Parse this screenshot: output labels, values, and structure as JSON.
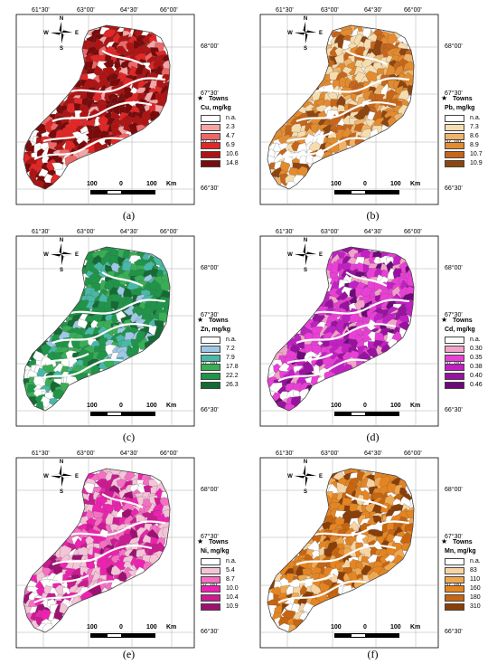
{
  "longitude_labels": [
    "61°30'",
    "63°00'",
    "64°30'",
    "66°00'"
  ],
  "latitude_labels": [
    "68°00'",
    "67°30'",
    "67°00'",
    "66°30'"
  ],
  "compass": {
    "n": "N",
    "s": "S",
    "e": "E",
    "w": "W"
  },
  "towns_label": "Towns",
  "scale_bar": {
    "left": "100",
    "mid": "0",
    "right": "100",
    "unit": "Km"
  },
  "na_color": "#ffffff",
  "panels": [
    {
      "caption": "(a)",
      "title": "Cu, mg/kg",
      "classes": [
        {
          "label": "n.a.",
          "color": "#ffffff"
        },
        {
          "label": "2.3",
          "color": "#f4a6a6"
        },
        {
          "label": "4.7",
          "color": "#ee6767"
        },
        {
          "label": "6.9",
          "color": "#e32626"
        },
        {
          "label": "10.6",
          "color": "#b01313"
        },
        {
          "label": "14.8",
          "color": "#7b0a0a"
        }
      ]
    },
    {
      "caption": "(b)",
      "title": "Pb, mg/kg",
      "classes": [
        {
          "label": "n.a.",
          "color": "#ffffff"
        },
        {
          "label": "7.3",
          "color": "#f6ddb0"
        },
        {
          "label": "8.6",
          "color": "#efb46a"
        },
        {
          "label": "8.9",
          "color": "#e38b2e"
        },
        {
          "label": "10.7",
          "color": "#c7661a"
        },
        {
          "label": "10.9",
          "color": "#8e4510"
        }
      ]
    },
    {
      "caption": "(c)",
      "title": "Zn, mg/kg",
      "classes": [
        {
          "label": "n.a.",
          "color": "#ffffff"
        },
        {
          "label": "7.2",
          "color": "#9ec8e6"
        },
        {
          "label": "7.9",
          "color": "#49b8a6"
        },
        {
          "label": "17.8",
          "color": "#39ae55"
        },
        {
          "label": "22.2",
          "color": "#1e9548"
        },
        {
          "label": "26.3",
          "color": "#146b34"
        }
      ]
    },
    {
      "caption": "(d)",
      "title": "Cd, mg/kg",
      "classes": [
        {
          "label": "n.a.",
          "color": "#ffffff"
        },
        {
          "label": "0.30",
          "color": "#f2a3c9"
        },
        {
          "label": "0.35",
          "color": "#ea3fd7"
        },
        {
          "label": "0.38",
          "color": "#c21fc4"
        },
        {
          "label": "0.40",
          "color": "#98129f"
        },
        {
          "label": "0.46",
          "color": "#6d0a78"
        }
      ]
    },
    {
      "caption": "(e)",
      "title": "Ni, mg/kg",
      "classes": [
        {
          "label": "n.a.",
          "color": "#ffffff"
        },
        {
          "label": "5.4",
          "color": "#f5c4d9"
        },
        {
          "label": "8.7",
          "color": "#f56fc3"
        },
        {
          "label": "10.0",
          "color": "#ee22b0"
        },
        {
          "label": "10.4",
          "color": "#cc1a92"
        },
        {
          "label": "10.9",
          "color": "#9e1172"
        }
      ]
    },
    {
      "caption": "(f)",
      "title": "Mn, mg/kg",
      "classes": [
        {
          "label": "n.a.",
          "color": "#ffffff"
        },
        {
          "label": "83",
          "color": "#f6d4a3"
        },
        {
          "label": "110",
          "color": "#f0a850"
        },
        {
          "label": "160",
          "color": "#e58521"
        },
        {
          "label": "180",
          "color": "#c8650f"
        },
        {
          "label": "310",
          "color": "#8a3e07"
        }
      ]
    }
  ]
}
